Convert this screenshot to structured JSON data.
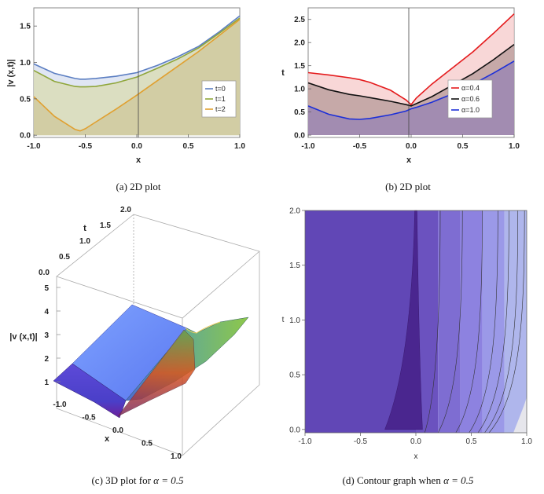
{
  "figure": {
    "captions": {
      "a": "(a)  2D plot",
      "b": "(b)  2D plot",
      "c_prefix": "(c)  3D plot for ",
      "c_alpha": "α = 0.5",
      "d_prefix": "(d)  Contour graph when ",
      "d_alpha": "α = 0.5"
    }
  },
  "chart_data": [
    {
      "id": "a",
      "type": "area",
      "title": "",
      "xlabel": "x",
      "ylabel": "|v (x,t)|",
      "xlim": [
        -1.0,
        1.0
      ],
      "ylim": [
        -0.03,
        1.75
      ],
      "xticks": [
        "-1.0",
        "-0.5",
        "0.0",
        "0.5",
        "1.0"
      ],
      "yticks": [
        "0.0",
        "0.5",
        "1.0",
        "1.5"
      ],
      "legend_position": "right",
      "x": [
        -1.0,
        -0.8,
        -0.6,
        -0.55,
        -0.5,
        -0.4,
        -0.2,
        0.0,
        0.2,
        0.4,
        0.6,
        0.8,
        1.0
      ],
      "series": [
        {
          "name": "t=0",
          "color": "#5b7ec2",
          "fill": "#d6deef",
          "values": [
            0.98,
            0.85,
            0.78,
            0.77,
            0.77,
            0.78,
            0.81,
            0.86,
            0.96,
            1.08,
            1.22,
            1.42,
            1.64
          ]
        },
        {
          "name": "t=1",
          "color": "#8fa63a",
          "fill": "#d9dbb0",
          "values": [
            0.89,
            0.74,
            0.67,
            0.665,
            0.665,
            0.67,
            0.72,
            0.8,
            0.92,
            1.05,
            1.2,
            1.4,
            1.61
          ]
        },
        {
          "name": "t=2",
          "color": "#e0a030",
          "fill": "#cfc79a",
          "values": [
            0.53,
            0.26,
            0.08,
            0.06,
            0.09,
            0.18,
            0.36,
            0.55,
            0.75,
            0.95,
            1.15,
            1.37,
            1.59
          ]
        }
      ]
    },
    {
      "id": "b",
      "type": "area",
      "title": "",
      "xlabel": "x",
      "ylabel": "t",
      "xlim": [
        -1.0,
        1.0
      ],
      "ylim": [
        -0.05,
        2.75
      ],
      "xticks": [
        "-1.0",
        "-0.5",
        "0.0",
        "0.5",
        "1.0"
      ],
      "yticks": [
        "0.0",
        "0.5",
        "1.0",
        "1.5",
        "2.0",
        "2.5"
      ],
      "legend_position": "right",
      "x": [
        -1.0,
        -0.8,
        -0.6,
        -0.5,
        -0.4,
        -0.2,
        -0.05,
        0.0,
        0.05,
        0.2,
        0.4,
        0.6,
        0.8,
        1.0
      ],
      "series": [
        {
          "name": "α=0.4",
          "color": "#e41a1c",
          "fill": "#f6c9c9",
          "values": [
            1.35,
            1.3,
            1.24,
            1.2,
            1.14,
            0.97,
            0.76,
            0.66,
            0.8,
            1.1,
            1.45,
            1.8,
            2.2,
            2.62
          ]
        },
        {
          "name": "α=0.6",
          "color": "#111111",
          "fill": "#b59a98",
          "values": [
            1.13,
            0.98,
            0.88,
            0.85,
            0.81,
            0.73,
            0.66,
            0.63,
            0.68,
            0.83,
            1.08,
            1.33,
            1.63,
            1.96
          ]
        },
        {
          "name": "α=1.0",
          "color": "#1c2fd8",
          "fill": "#9583b4",
          "values": [
            0.63,
            0.45,
            0.35,
            0.34,
            0.36,
            0.44,
            0.52,
            0.57,
            0.6,
            0.71,
            0.89,
            1.1,
            1.34,
            1.6
          ]
        }
      ]
    },
    {
      "id": "c",
      "type": "surface3d",
      "zlabel": "|v (x,t)|",
      "xlabel": "x",
      "ylabel": "t",
      "xticks": [
        "-1.0",
        "-0.5",
        "0.0",
        "0.5",
        "1.0"
      ],
      "tticks": [
        "0.0",
        "0.5",
        "1.0",
        "1.5",
        "2.0"
      ],
      "zticks": [
        "1",
        "2",
        "3",
        "4",
        "5"
      ]
    },
    {
      "id": "d",
      "type": "contour",
      "xlabel": "x",
      "ylabel": "t",
      "xlim": [
        -1.0,
        1.0
      ],
      "ylim": [
        -0.03,
        2.0
      ],
      "xticks": [
        "-1.0",
        "-0.5",
        "0.0",
        "0.5",
        "1.0"
      ],
      "yticks": [
        "0.0",
        "0.5",
        "1.0",
        "1.5",
        "2.0"
      ],
      "bands": [
        {
          "from": -1.0,
          "to": 0.0,
          "color": "#6147b6"
        },
        {
          "from": 0.0,
          "to": 0.2,
          "color": "#6b52bf"
        },
        {
          "from": 0.2,
          "to": 0.4,
          "color": "#7e6dd2"
        },
        {
          "from": 0.4,
          "to": 0.6,
          "color": "#8d82e0"
        },
        {
          "from": 0.6,
          "to": 0.8,
          "color": "#9b99e8"
        },
        {
          "from": 0.8,
          "to": 1.0,
          "color": "#afb6ec"
        }
      ],
      "spike_color": "#4a268f"
    }
  ]
}
